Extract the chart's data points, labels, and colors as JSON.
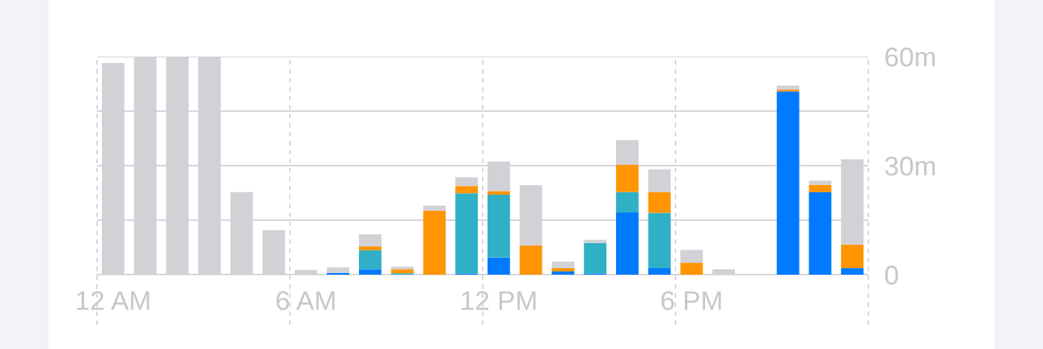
{
  "chart_data": {
    "type": "bar",
    "stacked": true,
    "categories": [
      "12 AM",
      null,
      null,
      null,
      null,
      null,
      "6 AM",
      null,
      null,
      null,
      null,
      null,
      "12 PM",
      null,
      null,
      null,
      null,
      null,
      "6 PM",
      null,
      null,
      null,
      null,
      null
    ],
    "series": [
      {
        "color": "#007aff",
        "values": [
          0,
          0,
          0,
          0,
          0,
          0,
          0,
          0.5,
          1.5,
          0,
          0,
          0.3,
          4.7,
          0,
          0.9,
          0.3,
          17.1,
          1.8,
          0,
          0,
          0,
          50.4,
          22.7,
          1.8
        ]
      },
      {
        "color": "#30b0c7",
        "values": [
          0,
          0,
          0,
          0,
          0,
          0,
          0,
          0,
          5.2,
          0.4,
          0,
          22.1,
          17.3,
          0,
          0,
          8.4,
          5.6,
          15.2,
          0,
          0,
          0,
          0,
          0,
          0
        ]
      },
      {
        "color": "#ff9500",
        "values": [
          0,
          0,
          0,
          0,
          0,
          0,
          0,
          0,
          1.1,
          1.1,
          17.6,
          2,
          1,
          8,
          0.9,
          0,
          7.5,
          5.7,
          3.3,
          0,
          0,
          0.5,
          2,
          6.5
        ]
      },
      {
        "color": "#d1d1d6",
        "values": [
          58.2,
          60,
          60,
          60,
          22.7,
          12.2,
          1.3,
          1.5,
          3.3,
          0.7,
          1.4,
          2.4,
          8.1,
          16.6,
          1.8,
          0.9,
          6.8,
          6.3,
          3.5,
          1.5,
          0.2,
          1.1,
          1.2,
          23.4
        ]
      }
    ],
    "ylim": [
      0,
      60
    ],
    "yticks": [
      0,
      {
        "value": 15,
        "label": null
      },
      {
        "value": 30,
        "label": "30m"
      },
      {
        "value": 45,
        "label": null
      },
      {
        "value": 60,
        "label": "60m"
      }
    ],
    "grid": true
  }
}
